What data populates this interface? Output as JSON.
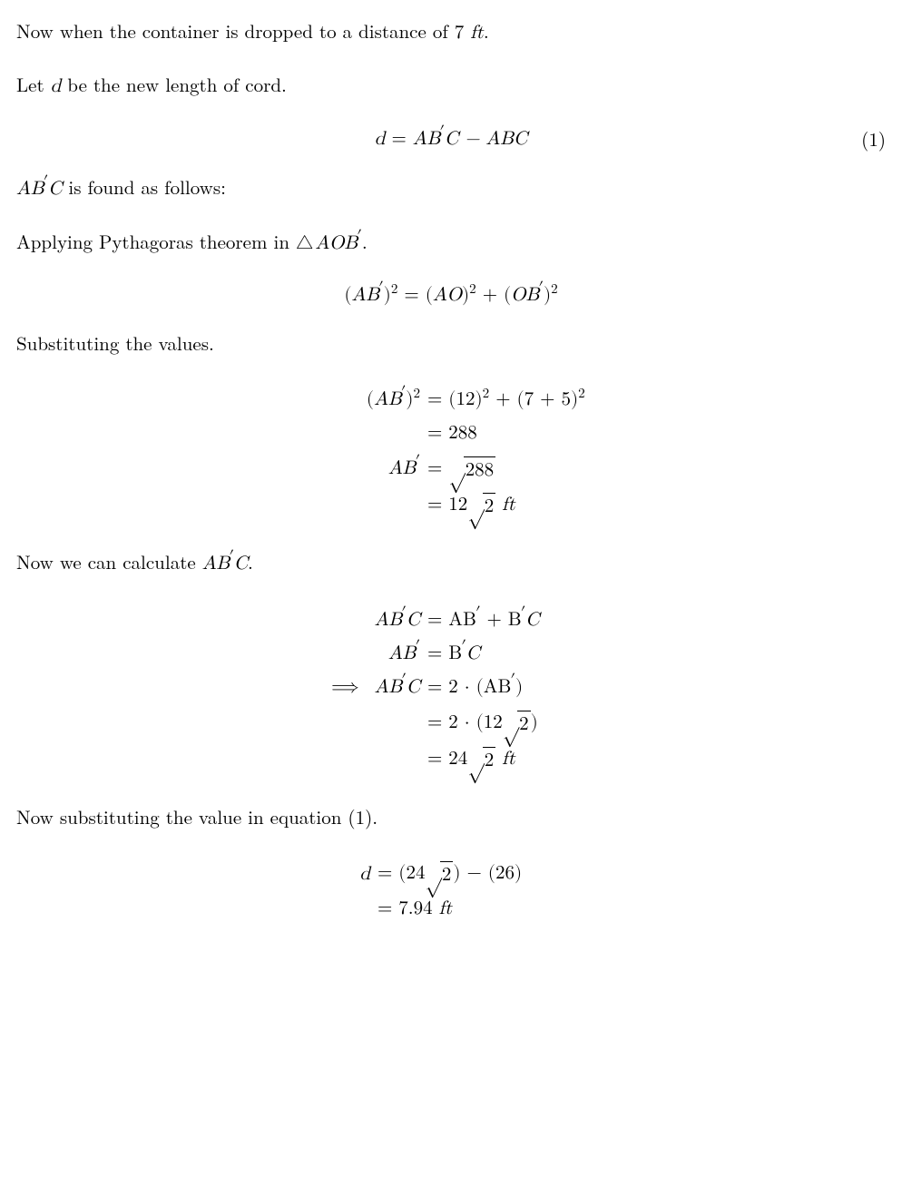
{
  "p1_a": "Now when the container is dropped to a distance of ",
  "p1_b": "7",
  "p1_c": "ft",
  "p1_d": ".",
  "p2_a": "Let ",
  "p2_b": "d",
  "p2_c": " be the new length of cord.",
  "eq1_lhs": "d",
  "eq1_rhs_a": "AB",
  "eq1_rhs_b": "C − ABC",
  "eq1_num": "(1)",
  "p3_a": "AB",
  "p3_b": "C",
  "p3_c": " is found as follows:",
  "p4_a": "Applying Pythagoras theorem in ",
  "p4_b": "AOB",
  "p4_c": ".",
  "eq2_l": "AB",
  "eq2_r_a": "AO",
  "eq2_r_b": "OB",
  "p5": "Substituting the values.",
  "eq3_l1_l": "AB",
  "eq3_l1_r": "= (12)",
  "eq3_l1_r2": " + (7 + 5)",
  "eq3_l2": "= 288",
  "eq3_l3_l": "AB",
  "eq3_l3_r": "288",
  "eq3_l4_a": "= 12",
  "eq3_l4_b": "2",
  "eq3_l4_c": " ft",
  "p6_a": "Now we can calculate ",
  "p6_b": "AB",
  "p6_c": "C",
  "p6_d": ".",
  "eq4_l1_l": "AB",
  "eq4_l1_l2": "C",
  "eq4_l1_r_a": "= AB",
  "eq4_l1_r_b": " + B",
  "eq4_l1_r_c": "C",
  "eq4_l2_l": "AB",
  "eq4_l2_r_a": "= B",
  "eq4_l2_r_b": "C",
  "eq4_l3_l": "AB",
  "eq4_l3_l2": "C",
  "eq4_l3_r": "= 2 · (AB",
  "eq4_l3_r2": ")",
  "eq4_l4_a": "= 2 · (12",
  "eq4_l4_b": "2",
  "eq4_l4_c": ")",
  "eq4_l5_a": "= 24",
  "eq4_l5_b": "2",
  "eq4_l5_c": " ft",
  "p7": "Now substituting the value in equation (1).",
  "eq5_l1_l": "d",
  "eq5_l1_r_a": "= (24",
  "eq5_l1_r_b": "2",
  "eq5_l1_r_c": ") − (26)",
  "eq5_l2": "= 7.94 ft"
}
